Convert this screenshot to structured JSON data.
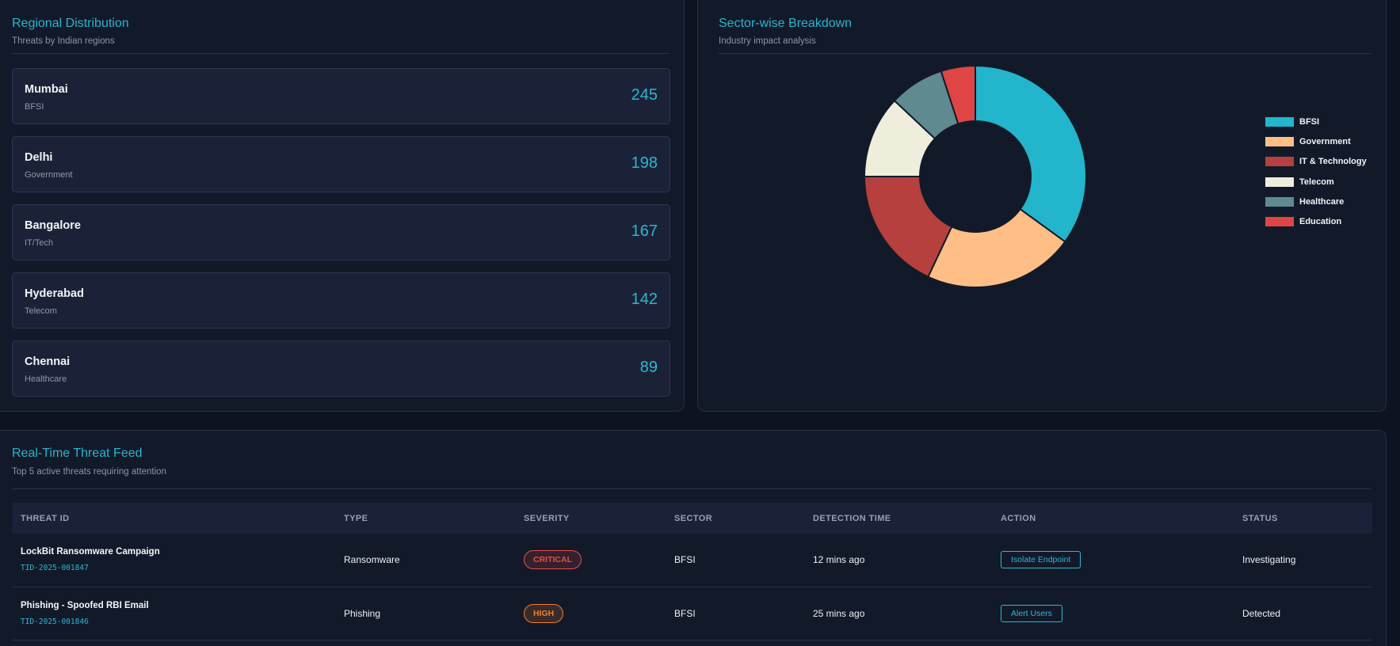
{
  "regional": {
    "title": "Regional Distribution",
    "subtitle": "Threats by Indian regions",
    "items": [
      {
        "name": "Mumbai",
        "sector": "BFSI",
        "count": "245"
      },
      {
        "name": "Delhi",
        "sector": "Government",
        "count": "198"
      },
      {
        "name": "Bangalore",
        "sector": "IT/Tech",
        "count": "167"
      },
      {
        "name": "Hyderabad",
        "sector": "Telecom",
        "count": "142"
      },
      {
        "name": "Chennai",
        "sector": "Healthcare",
        "count": "89"
      }
    ]
  },
  "sector": {
    "title": "Sector-wise Breakdown",
    "subtitle": "Industry impact analysis"
  },
  "chart_data": {
    "type": "pie",
    "donut": true,
    "legend_position": "right",
    "categories": [
      "BFSI",
      "Government",
      "IT & Technology",
      "Telecom",
      "Healthcare",
      "Education"
    ],
    "values": [
      35,
      22,
      18,
      12,
      8,
      5
    ],
    "colors": [
      "#22b5cb",
      "#ffbe85",
      "#b5403d",
      "#efeddc",
      "#5f8a90",
      "#e04545"
    ]
  },
  "feed": {
    "title": "Real-Time Threat Feed",
    "subtitle": "Top 5 active threats requiring attention",
    "columns": [
      "THREAT ID",
      "TYPE",
      "SEVERITY",
      "SECTOR",
      "DETECTION TIME",
      "ACTION",
      "STATUS"
    ],
    "rows": [
      {
        "name": "LockBit Ransomware Campaign",
        "id": "TID-2025-001847",
        "type": "Ransomware",
        "severity": "CRITICAL",
        "sector": "BFSI",
        "time": "12 mins ago",
        "action": "Isolate Endpoint",
        "status": "Investigating"
      },
      {
        "name": "Phishing - Spoofed RBI Email",
        "id": "TID-2025-001846",
        "type": "Phishing",
        "severity": "HIGH",
        "sector": "BFSI",
        "time": "25 mins ago",
        "action": "Alert Users",
        "status": "Detected"
      }
    ]
  }
}
